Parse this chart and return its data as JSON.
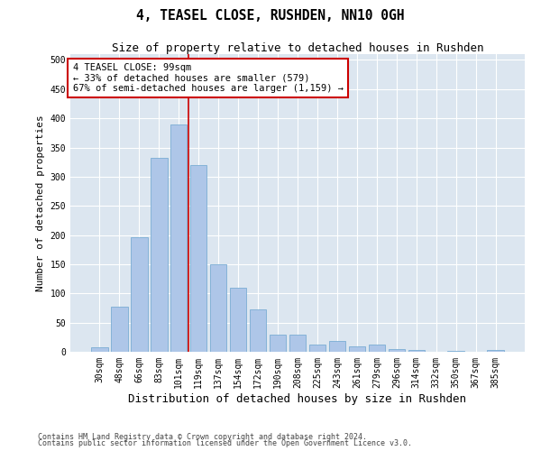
{
  "title1": "4, TEASEL CLOSE, RUSHDEN, NN10 0GH",
  "title2": "Size of property relative to detached houses in Rushden",
  "xlabel": "Distribution of detached houses by size in Rushden",
  "ylabel": "Number of detached properties",
  "categories": [
    "30sqm",
    "48sqm",
    "66sqm",
    "83sqm",
    "101sqm",
    "119sqm",
    "137sqm",
    "154sqm",
    "172sqm",
    "190sqm",
    "208sqm",
    "225sqm",
    "243sqm",
    "261sqm",
    "279sqm",
    "296sqm",
    "314sqm",
    "332sqm",
    "350sqm",
    "367sqm",
    "385sqm"
  ],
  "values": [
    8,
    78,
    197,
    332,
    390,
    320,
    150,
    110,
    72,
    30,
    30,
    13,
    18,
    10,
    12,
    5,
    3,
    0,
    1,
    0,
    3
  ],
  "bar_color": "#aec6e8",
  "bar_edge_color": "#7aadd4",
  "vline_x": 4.5,
  "annotation_line1": "4 TEASEL CLOSE: 99sqm",
  "annotation_line2": "← 33% of detached houses are smaller (579)",
  "annotation_line3": "67% of semi-detached houses are larger (1,159) →",
  "annotation_box_color": "#ffffff",
  "annotation_box_edge": "#cc0000",
  "vline_color": "#cc0000",
  "fig_bg_color": "#ffffff",
  "plot_bg_color": "#dce6f0",
  "ylim": [
    0,
    510
  ],
  "yticks": [
    0,
    50,
    100,
    150,
    200,
    250,
    300,
    350,
    400,
    450,
    500
  ],
  "footnote1": "Contains HM Land Registry data © Crown copyright and database right 2024.",
  "footnote2": "Contains public sector information licensed under the Open Government Licence v3.0.",
  "title_fontsize": 10.5,
  "subtitle_fontsize": 9,
  "tick_fontsize": 7,
  "ylabel_fontsize": 8,
  "xlabel_fontsize": 9,
  "footnote_fontsize": 6,
  "annot_fontsize": 7.5
}
